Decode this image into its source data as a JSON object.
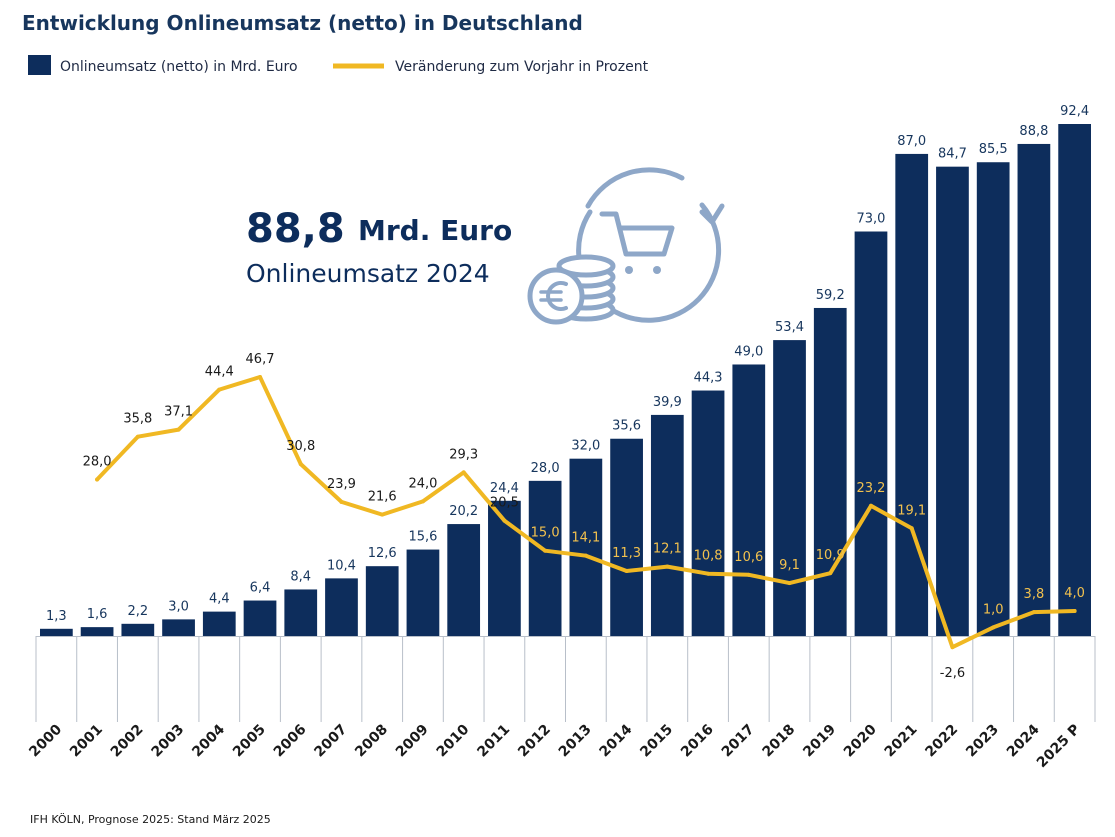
{
  "title": "Entwicklung Onlineumsatz (netto) in Deutschland",
  "highlight": {
    "value": "88,8",
    "unit": "Mrd. Euro",
    "subtitle": "Onlineumsatz 2024"
  },
  "source": "IFH KÖLN, Prognose 2025: Stand März 2025",
  "colors": {
    "bar": "#0d2d5c",
    "line": "#f0b823",
    "grid": "#b8bfc9",
    "icon": "#8ea7c8"
  },
  "icons": [
    "euro-coin-stack-icon",
    "shopping-cart-icon",
    "circular-arrow-icon"
  ],
  "chart_data": {
    "type": "bar+line",
    "title": "Entwicklung Onlineumsatz (netto) in Deutschland",
    "legend": {
      "bars": "Onlineumsatz (netto) in Mrd. Euro",
      "line": "Veränderung zum Vorjahr in Prozent",
      "placement": "top-left"
    },
    "categories": [
      "2000",
      "2001",
      "2002",
      "2003",
      "2004",
      "2005",
      "2006",
      "2007",
      "2008",
      "2009",
      "2010",
      "2011",
      "2012",
      "2013",
      "2014",
      "2015",
      "2016",
      "2017",
      "2018",
      "2019",
      "2020",
      "2021",
      "2022",
      "2023",
      "2024",
      "2025 P"
    ],
    "bar_values": [
      1.3,
      1.6,
      2.2,
      3.0,
      4.4,
      6.4,
      8.4,
      10.4,
      12.6,
      15.6,
      20.2,
      24.4,
      28.0,
      32.0,
      35.6,
      39.9,
      44.3,
      49.0,
      53.4,
      59.2,
      73.0,
      87.0,
      84.7,
      85.5,
      88.8,
      92.4
    ],
    "bar_labels": [
      "1,3",
      "1,6",
      "2,2",
      "3,0",
      "4,4",
      "6,4",
      "8,4",
      "10,4",
      "12,6",
      "15,6",
      "20,2",
      "24,4",
      "28,0",
      "32,0",
      "35,6",
      "39,9",
      "44,3",
      "49,0",
      "53,4",
      "59,2",
      "73,0",
      "87,0",
      "84,7",
      "85,5",
      "88,8",
      "92,4"
    ],
    "line_values": [
      null,
      28.0,
      35.8,
      37.1,
      44.4,
      46.7,
      30.8,
      23.9,
      21.6,
      24.0,
      29.3,
      20.5,
      15.0,
      14.1,
      11.3,
      12.1,
      10.8,
      10.6,
      9.1,
      10.9,
      23.2,
      19.1,
      -2.6,
      1.0,
      3.8,
      4.0
    ],
    "line_labels": [
      null,
      "28,0",
      "35,8",
      "37,1",
      "44,4",
      "46,7",
      "30,8",
      "23,9",
      "21,6",
      "24,0",
      "29,3",
      "20,5",
      "15,0",
      "14,1",
      "11,3",
      "12,1",
      "10,8",
      "10,6",
      "9,1",
      "10,9",
      "23,2",
      "19,1",
      "-2,6",
      "1,0",
      "3,8",
      "4,0"
    ],
    "bar_axis_range": [
      0,
      92.4
    ],
    "line_axis_range": [
      -5,
      50
    ],
    "grid": false
  }
}
